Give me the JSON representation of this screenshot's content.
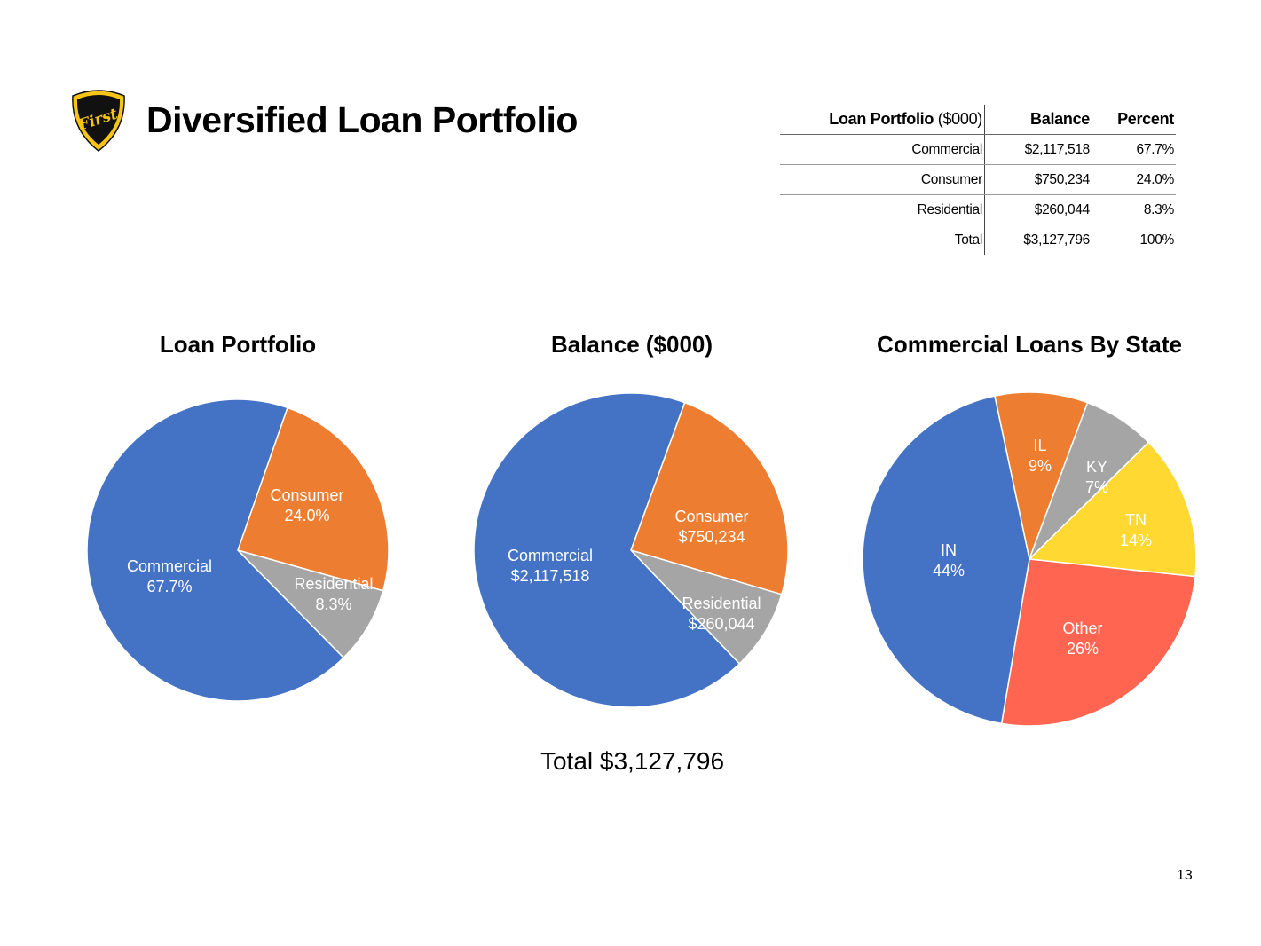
{
  "slide": {
    "title": "Diversified Loan Portfolio",
    "page_number": "13",
    "logo_text": "First",
    "total_label": "Total $3,127,796"
  },
  "table": {
    "header": {
      "label": "Loan Portfolio",
      "unit": "($000)",
      "balance": "Balance",
      "percent": "Percent"
    },
    "rows": [
      {
        "label": "Commercial",
        "balance": "$2,117,518",
        "percent": "67.7%"
      },
      {
        "label": "Consumer",
        "balance": "$750,234",
        "percent": "24.0%"
      },
      {
        "label": "Residential",
        "balance": "$260,044",
        "percent": "8.3%"
      },
      {
        "label": "Total",
        "balance": "$3,127,796",
        "percent": "100%"
      }
    ]
  },
  "colors": {
    "blue": "#4472C4",
    "orange": "#ED7D31",
    "gray": "#A5A5A5",
    "yellow": "#FFD932",
    "red": "#FF6550"
  },
  "chart_data": [
    {
      "type": "pie",
      "title": "Loan Portfolio",
      "slices": [
        {
          "label": "Consumer",
          "value_label": "24.0%",
          "value": 24.0,
          "color": "#ED7D31"
        },
        {
          "label": "Residential",
          "value_label": "8.3%",
          "value": 8.3,
          "color": "#A5A5A5"
        },
        {
          "label": "Commercial",
          "value_label": "67.7%",
          "value": 67.7,
          "color": "#4472C4"
        }
      ]
    },
    {
      "type": "pie",
      "title": "Balance ($000)",
      "slices": [
        {
          "label": "Consumer",
          "value_label": "$750,234",
          "value": 750234,
          "color": "#ED7D31"
        },
        {
          "label": "Residential",
          "value_label": "$260,044",
          "value": 260044,
          "color": "#A5A5A5"
        },
        {
          "label": "Commercial",
          "value_label": "$2,117,518",
          "value": 2117518,
          "color": "#4472C4"
        }
      ]
    },
    {
      "type": "pie",
      "title": "Commercial Loans By State",
      "slices": [
        {
          "label": "IL",
          "value_label": "9%",
          "value": 9,
          "color": "#ED7D31"
        },
        {
          "label": "KY",
          "value_label": "7%",
          "value": 7,
          "color": "#A5A5A5"
        },
        {
          "label": "TN",
          "value_label": "14%",
          "value": 14,
          "color": "#FFD932"
        },
        {
          "label": "Other",
          "value_label": "26%",
          "value": 26,
          "color": "#FF6550"
        },
        {
          "label": "IN",
          "value_label": "44%",
          "value": 44,
          "color": "#4472C4"
        }
      ]
    }
  ]
}
